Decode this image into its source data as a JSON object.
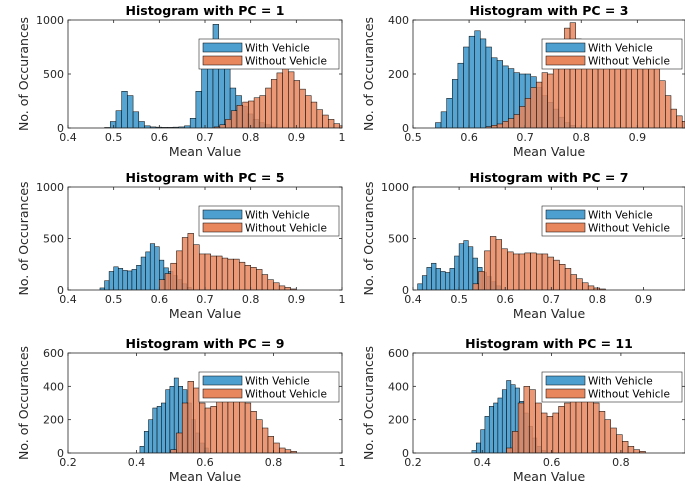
{
  "chart_data": [
    {
      "type": "histogram",
      "title": "Histogram with PC = 1",
      "xlabel": "Mean Value",
      "ylabel": "No. of Occurances",
      "xlim": [
        0.4,
        1.0
      ],
      "ylim": [
        0,
        1000
      ],
      "xticks": [
        0.4,
        0.5,
        0.6,
        0.7,
        0.8,
        0.9,
        1
      ],
      "xtick_labels": [
        "0.4",
        "0.5",
        "0.6",
        "0.7",
        "0.8",
        "0.9",
        "1"
      ],
      "yticks": [
        0,
        500,
        1000
      ],
      "ytick_labels": [
        "0",
        "500",
        "1000"
      ],
      "legend": "top-right",
      "series": [
        {
          "name": "With Vehicle",
          "color": "#4d9fd0",
          "bin_start": 0.48,
          "bin_width": 0.0125,
          "values": [
            5,
            60,
            160,
            340,
            300,
            150,
            60,
            20,
            10,
            8,
            6,
            6,
            8,
            10,
            20,
            90,
            340,
            560,
            600,
            960,
            810,
            560,
            370,
            300,
            200,
            130,
            80,
            50,
            30,
            10
          ]
        },
        {
          "name": "Without Vehicle",
          "color": "#e8865e",
          "bin_start": 0.72,
          "bin_width": 0.0125,
          "values": [
            10,
            30,
            80,
            160,
            210,
            240,
            250,
            280,
            300,
            370,
            450,
            510,
            560,
            520,
            440,
            360,
            300,
            240,
            170,
            120,
            80,
            40,
            20
          ]
        }
      ]
    },
    {
      "type": "histogram",
      "title": "Histogram with PC = 3",
      "xlabel": "Mean Value",
      "ylabel": "No. of Occurances",
      "xlim": [
        0.5,
        0.985
      ],
      "ylim": [
        0,
        400
      ],
      "xticks": [
        0.5,
        0.6,
        0.7,
        0.8,
        0.9
      ],
      "xtick_labels": [
        "0.5",
        "0.6",
        "0.7",
        "0.8",
        "0.9"
      ],
      "yticks": [
        0,
        200,
        400
      ],
      "ytick_labels": [
        "0",
        "200",
        "400"
      ],
      "legend": "top-right",
      "series": [
        {
          "name": "With Vehicle",
          "color": "#4d9fd0",
          "bin_start": 0.54,
          "bin_width": 0.01,
          "values": [
            20,
            60,
            110,
            180,
            240,
            300,
            340,
            360,
            330,
            300,
            260,
            250,
            230,
            220,
            205,
            200,
            200,
            190,
            150,
            120,
            95,
            70,
            40,
            20,
            10
          ]
        },
        {
          "name": "Without Vehicle",
          "color": "#e8865e",
          "bin_start": 0.63,
          "bin_width": 0.01,
          "values": [
            5,
            10,
            15,
            25,
            35,
            50,
            80,
            110,
            150,
            170,
            205,
            200,
            245,
            255,
            370,
            390,
            330,
            305,
            240,
            230,
            225,
            235,
            240,
            240,
            280,
            290,
            300,
            300,
            240,
            220,
            220,
            175,
            120,
            70,
            45,
            25
          ]
        }
      ]
    },
    {
      "type": "histogram",
      "title": "Histogram with PC = 5",
      "xlabel": "Mean Value",
      "ylabel": "No. of Occurances",
      "xlim": [
        0.4,
        1.0
      ],
      "ylim": [
        0,
        1000
      ],
      "xticks": [
        0.4,
        0.5,
        0.6,
        0.7,
        0.8,
        0.9,
        1
      ],
      "xtick_labels": [
        "0.4",
        "0.5",
        "0.6",
        "0.7",
        "0.8",
        "0.9",
        "1"
      ],
      "yticks": [
        0,
        500,
        1000
      ],
      "ytick_labels": [
        "0",
        "500",
        "1000"
      ],
      "legend": "top-right",
      "series": [
        {
          "name": "With Vehicle",
          "color": "#4d9fd0",
          "bin_start": 0.47,
          "bin_width": 0.01,
          "values": [
            20,
            90,
            180,
            225,
            210,
            190,
            185,
            200,
            240,
            320,
            370,
            450,
            420,
            290,
            215,
            180,
            140,
            100,
            60,
            25
          ]
        },
        {
          "name": "Without Vehicle",
          "color": "#e8865e",
          "bin_start": 0.6,
          "bin_width": 0.0125,
          "values": [
            100,
            160,
            260,
            380,
            510,
            550,
            440,
            350,
            350,
            330,
            330,
            310,
            300,
            300,
            270,
            240,
            220,
            200,
            150,
            100,
            70,
            40,
            25,
            10
          ]
        }
      ]
    },
    {
      "type": "histogram",
      "title": "Histogram with PC = 7",
      "xlabel": "Mean Value",
      "ylabel": "No. of Occurances",
      "xlim": [
        0.4,
        0.99
      ],
      "ylim": [
        0,
        1000
      ],
      "xticks": [
        0.4,
        0.5,
        0.6,
        0.7,
        0.8,
        0.9
      ],
      "xtick_labels": [
        "0.4",
        "0.5",
        "0.6",
        "0.7",
        "0.8",
        "0.9"
      ],
      "yticks": [
        0,
        500,
        1000
      ],
      "ytick_labels": [
        "0",
        "500",
        "1000"
      ],
      "legend": "top-right",
      "series": [
        {
          "name": "With Vehicle",
          "color": "#4d9fd0",
          "bin_start": 0.41,
          "bin_width": 0.01,
          "values": [
            60,
            140,
            220,
            260,
            210,
            180,
            170,
            210,
            330,
            450,
            480,
            420,
            310,
            220,
            170,
            130,
            80,
            40
          ]
        },
        {
          "name": "Without Vehicle",
          "color": "#e8865e",
          "bin_start": 0.53,
          "bin_width": 0.0125,
          "values": [
            60,
            180,
            380,
            520,
            490,
            400,
            370,
            350,
            350,
            360,
            360,
            350,
            350,
            320,
            290,
            250,
            210,
            150,
            110,
            70,
            40,
            20,
            10
          ]
        }
      ]
    },
    {
      "type": "histogram",
      "title": "Histogram with PC = 9",
      "xlabel": "Mean Value",
      "ylabel": "No. of Occurances",
      "xlim": [
        0.2,
        1.0
      ],
      "ylim": [
        0,
        600
      ],
      "xticks": [
        0.2,
        0.4,
        0.6,
        0.8,
        1
      ],
      "xtick_labels": [
        "0.2",
        "0.4",
        "0.6",
        "0.8",
        "1"
      ],
      "yticks": [
        0,
        200,
        400,
        600
      ],
      "ytick_labels": [
        "0",
        "200",
        "400",
        "600"
      ],
      "legend": "top-right",
      "series": [
        {
          "name": "With Vehicle",
          "color": "#4d9fd0",
          "bin_start": 0.41,
          "bin_width": 0.0125,
          "values": [
            40,
            130,
            200,
            270,
            280,
            300,
            380,
            400,
            450,
            400,
            380,
            300,
            200,
            120,
            60,
            30
          ]
        },
        {
          "name": "Without Vehicle",
          "color": "#e8865e",
          "bin_start": 0.5,
          "bin_width": 0.0167,
          "values": [
            20,
            120,
            300,
            430,
            390,
            300,
            270,
            280,
            320,
            340,
            340,
            360,
            350,
            300,
            250,
            200,
            150,
            100,
            60,
            30,
            20,
            10
          ]
        }
      ]
    },
    {
      "type": "histogram",
      "title": "Histogram with PC = 11",
      "xlabel": "Mean Value",
      "ylabel": "No. of Occurances",
      "xlim": [
        0.2,
        0.985
      ],
      "ylim": [
        0,
        600
      ],
      "xticks": [
        0.2,
        0.4,
        0.6,
        0.8
      ],
      "xtick_labels": [
        "0.2",
        "0.4",
        "0.6",
        "0.8"
      ],
      "yticks": [
        0,
        200,
        400,
        600
      ],
      "ytick_labels": [
        "0",
        "200",
        "400",
        "600"
      ],
      "legend": "top-right",
      "series": [
        {
          "name": "With Vehicle",
          "color": "#4d9fd0",
          "bin_start": 0.37,
          "bin_width": 0.0125,
          "values": [
            15,
            60,
            140,
            220,
            280,
            300,
            330,
            380,
            435,
            410,
            390,
            310,
            240,
            160,
            90,
            40,
            15
          ]
        },
        {
          "name": "Without Vehicle",
          "color": "#e8865e",
          "bin_start": 0.47,
          "bin_width": 0.0167,
          "values": [
            30,
            130,
            300,
            400,
            380,
            300,
            240,
            220,
            240,
            280,
            300,
            330,
            350,
            350,
            340,
            300,
            250,
            200,
            150,
            110,
            70,
            40,
            20,
            10
          ]
        }
      ]
    }
  ]
}
